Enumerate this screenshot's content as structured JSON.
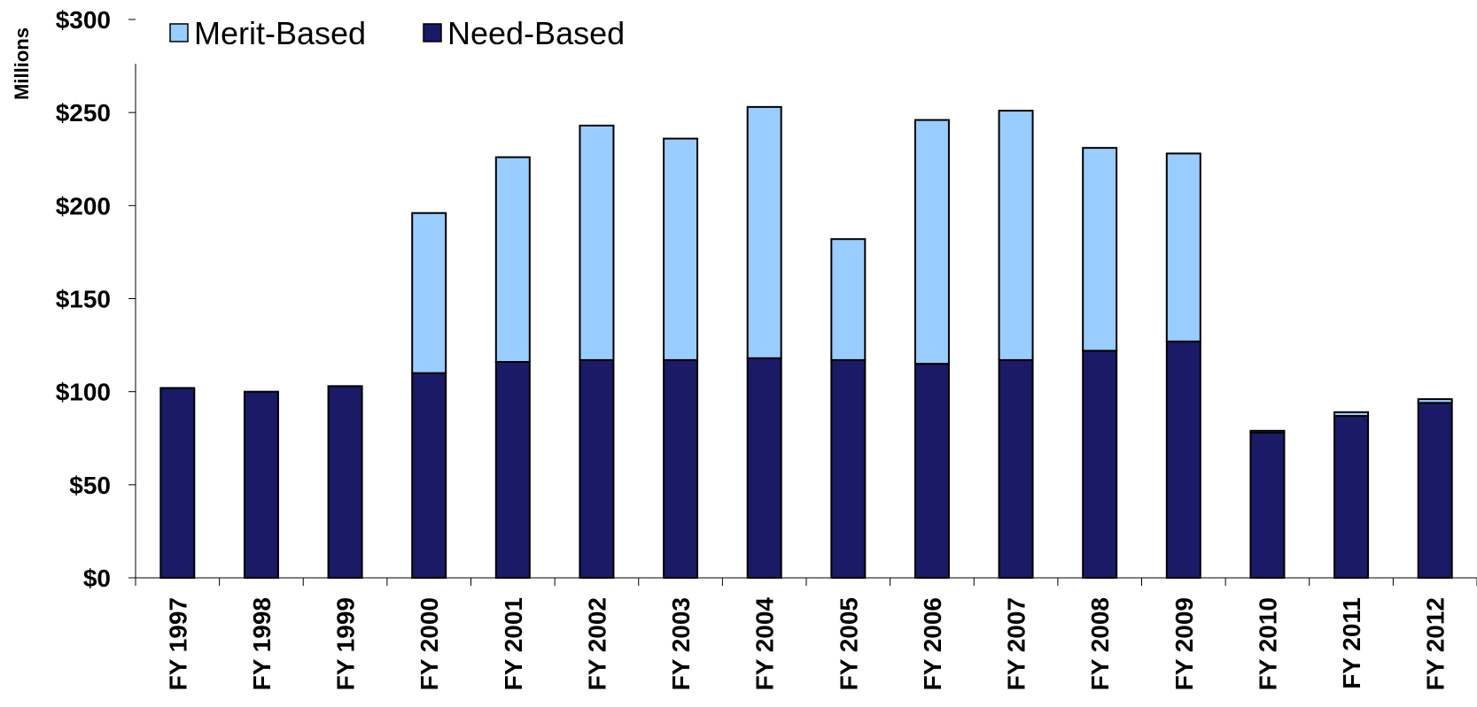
{
  "chart_data": {
    "type": "bar",
    "stacked": true,
    "title": "",
    "unit_label": "Millions",
    "categories": [
      "FY 1997",
      "FY 1998",
      "FY 1999",
      "FY 2000",
      "FY 2001",
      "FY 2002",
      "FY 2003",
      "FY 2004",
      "FY 2005",
      "FY 2006",
      "FY 2007",
      "FY 2008",
      "FY 2009",
      "FY 2010",
      "FY 2011",
      "FY 2012"
    ],
    "series": [
      {
        "name": "Need-Based",
        "color": "#1a1a66",
        "values": [
          102,
          100,
          103,
          110,
          116,
          117,
          117,
          118,
          117,
          115,
          117,
          122,
          127,
          78,
          87,
          94
        ]
      },
      {
        "name": "Merit-Based",
        "color": "#99ccff",
        "values": [
          0,
          0,
          0,
          86,
          110,
          126,
          119,
          135,
          65,
          131,
          134,
          109,
          101,
          1,
          2,
          2
        ]
      }
    ],
    "ylim": [
      0,
      300
    ],
    "y_ticks": [
      0,
      50,
      100,
      150,
      200,
      250,
      300
    ],
    "y_tick_labels": [
      "$0",
      "$50",
      "$100",
      "$150",
      "$200",
      "$250",
      "$300"
    ],
    "legend": {
      "position": "top-left",
      "order": [
        "Merit-Based",
        "Need-Based"
      ]
    },
    "grid": false
  }
}
